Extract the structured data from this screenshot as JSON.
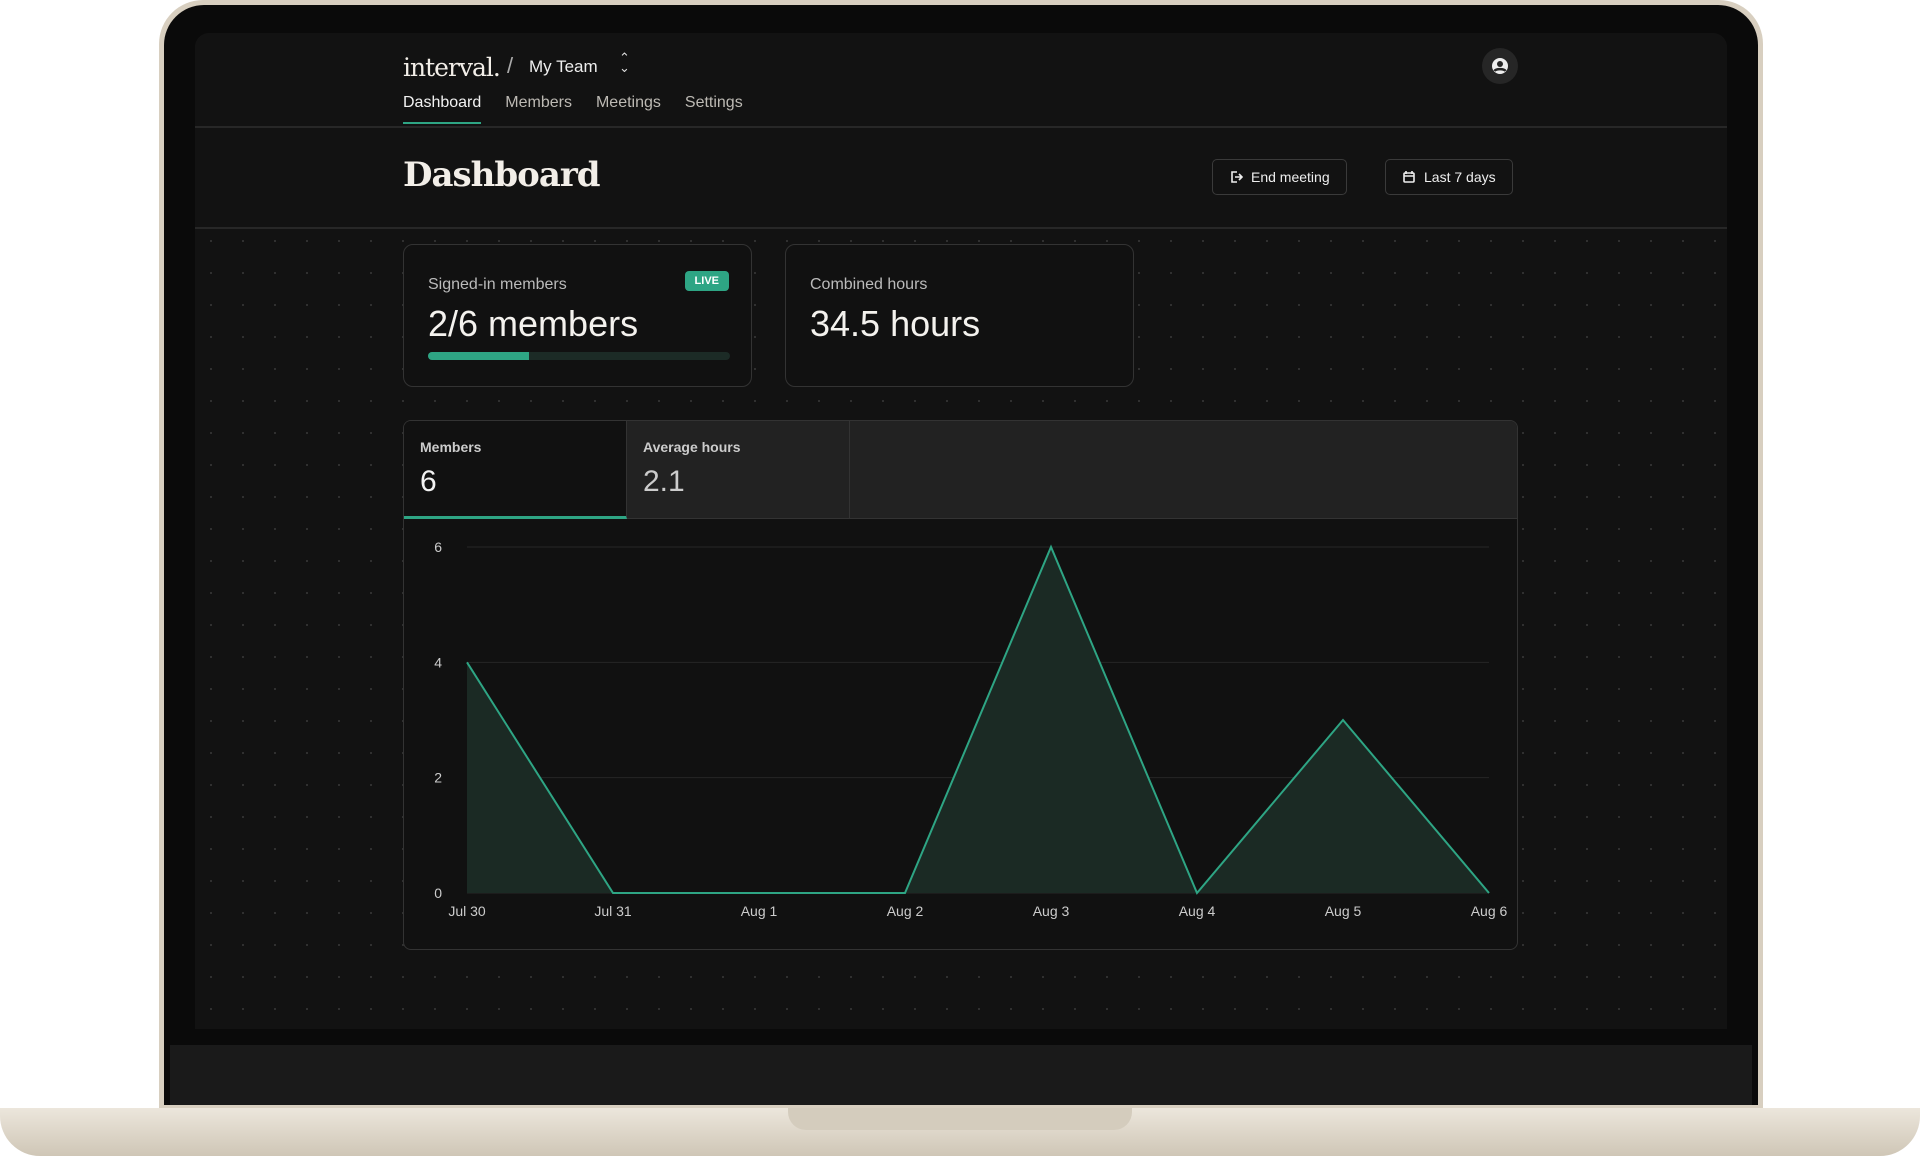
{
  "app": {
    "logo": "interval.",
    "separator": "/",
    "team": "My Team"
  },
  "nav": {
    "tabs": [
      {
        "label": "Dashboard",
        "active": true
      },
      {
        "label": "Members"
      },
      {
        "label": "Meetings"
      },
      {
        "label": "Settings"
      }
    ]
  },
  "header": {
    "title": "Dashboard",
    "end_meeting": "End meeting",
    "date_range": "Last 7 days"
  },
  "cards": {
    "signed_in": {
      "label": "Signed-in members",
      "value": "2/6 members",
      "badge": "LIVE",
      "progress": 0.333
    },
    "combined": {
      "label": "Combined hours",
      "value": "34.5 hours"
    }
  },
  "panel_tabs": [
    {
      "label": "Members",
      "value": "6",
      "active": true
    },
    {
      "label": "Average hours",
      "value": "2.1"
    }
  ],
  "colors": {
    "accent": "#2ea584",
    "background": "#121212"
  },
  "chart_data": {
    "type": "area",
    "categories": [
      "Jul 30",
      "Jul 31",
      "Aug 1",
      "Aug 2",
      "Aug 3",
      "Aug 4",
      "Aug 5",
      "Aug 6"
    ],
    "values": [
      4,
      0,
      0,
      0,
      6,
      0,
      3,
      0
    ],
    "ylim": [
      0,
      6
    ],
    "yticks": [
      0,
      2,
      4,
      6
    ],
    "grid": true
  }
}
